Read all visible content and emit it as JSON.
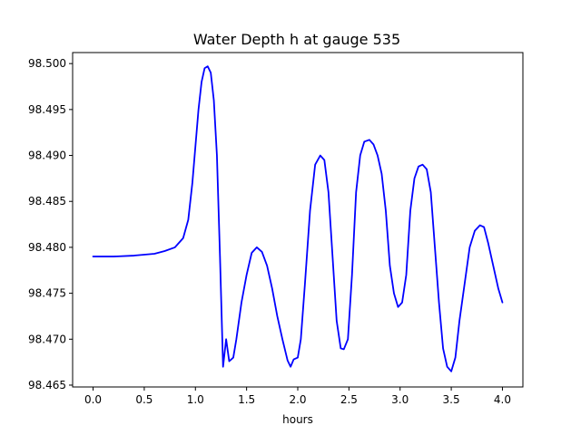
{
  "chart_data": {
    "type": "line",
    "title": "Water Depth h at gauge 535",
    "xlabel": "hours",
    "ylabel": "",
    "xlim": [
      -0.2,
      4.2
    ],
    "ylim": [
      98.4648,
      98.5012
    ],
    "xticks": [
      0.0,
      0.5,
      1.0,
      1.5,
      2.0,
      2.5,
      3.0,
      3.5,
      4.0
    ],
    "xtick_labels": [
      "0.0",
      "0.5",
      "1.0",
      "1.5",
      "2.0",
      "2.5",
      "3.0",
      "3.5",
      "4.0"
    ],
    "yticks": [
      98.465,
      98.47,
      98.475,
      98.48,
      98.485,
      98.49,
      98.495,
      98.5
    ],
    "ytick_labels": [
      "98.465",
      "98.470",
      "98.475",
      "98.480",
      "98.485",
      "98.490",
      "98.495",
      "98.500"
    ],
    "grid": false,
    "series": [
      {
        "color": "#0000ff",
        "x": [
          0.0,
          0.2,
          0.4,
          0.6,
          0.7,
          0.8,
          0.88,
          0.93,
          0.97,
          1.0,
          1.03,
          1.06,
          1.09,
          1.12,
          1.15,
          1.18,
          1.21,
          1.24,
          1.27,
          1.3,
          1.33,
          1.37,
          1.4,
          1.45,
          1.5,
          1.55,
          1.6,
          1.65,
          1.7,
          1.75,
          1.8,
          1.85,
          1.9,
          1.93,
          1.96,
          2.0,
          2.03,
          2.07,
          2.12,
          2.17,
          2.22,
          2.26,
          2.3,
          2.34,
          2.38,
          2.42,
          2.45,
          2.49,
          2.53,
          2.57,
          2.61,
          2.65,
          2.7,
          2.74,
          2.78,
          2.82,
          2.86,
          2.9,
          2.94,
          2.98,
          3.02,
          3.06,
          3.1,
          3.14,
          3.18,
          3.22,
          3.26,
          3.3,
          3.34,
          3.38,
          3.42,
          3.46,
          3.5,
          3.54,
          3.58,
          3.63,
          3.68,
          3.73,
          3.78,
          3.82,
          3.86,
          3.91,
          3.96,
          4.0
        ],
        "y": [
          98.479,
          98.479,
          98.4791,
          98.4793,
          98.4796,
          98.48,
          98.481,
          98.483,
          98.487,
          98.491,
          98.495,
          98.498,
          98.4995,
          98.4997,
          98.499,
          98.496,
          98.49,
          98.479,
          98.467,
          98.47,
          98.4676,
          98.468,
          98.47,
          98.474,
          98.477,
          98.4794,
          98.48,
          98.4795,
          98.478,
          98.4755,
          98.4725,
          98.47,
          98.4677,
          98.467,
          98.4678,
          98.468,
          98.47,
          98.476,
          98.484,
          98.489,
          98.49,
          98.4895,
          98.486,
          98.479,
          98.472,
          98.469,
          98.4689,
          98.47,
          98.477,
          98.486,
          98.49,
          98.4915,
          98.4917,
          98.4912,
          98.49,
          98.488,
          98.484,
          98.478,
          98.475,
          98.4735,
          98.474,
          98.477,
          98.484,
          98.4875,
          98.4888,
          98.489,
          98.4885,
          98.486,
          98.48,
          98.474,
          98.469,
          98.467,
          98.4665,
          98.468,
          98.472,
          98.476,
          98.48,
          98.4818,
          98.4824,
          98.4822,
          98.4805,
          98.478,
          98.4755,
          98.474
        ]
      }
    ]
  }
}
